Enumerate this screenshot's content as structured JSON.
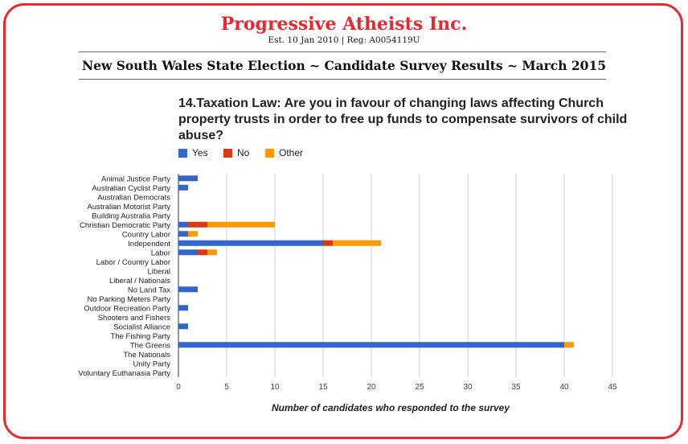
{
  "header": {
    "org_name": "Progressive Atheists Inc.",
    "org_details": "Est. 10 Jan 2010 | Reg: A0054119U",
    "survey_title": "New South Wales State Election ~ Candidate Survey Results ~ March 2015"
  },
  "colors": {
    "frame": "#e8272f",
    "yes": "#3366cc",
    "no": "#dc3912",
    "other": "#ff9900",
    "grid": "#cccccc"
  },
  "chart_data": {
    "type": "bar",
    "orientation": "horizontal",
    "stacked": true,
    "title": "14.Taxation Law: Are you in favour of changing laws affecting Church property trusts in order to free up funds to compensate survivors of child abuse?",
    "xlabel": "Number of candidates who responded to the survey",
    "ylabel": "",
    "xlim": [
      0,
      45
    ],
    "xticks": [
      0,
      5,
      10,
      15,
      20,
      25,
      30,
      35,
      40,
      45
    ],
    "grid": true,
    "legend_position": "top-left",
    "categories": [
      "Animal Justice Party",
      "Australian Cyclist Party",
      "Australian Democrats",
      "Australian Motorist Party",
      "Building Australia Party",
      "Christian Democratic Party",
      "Country Labor",
      "Independent",
      "Labor",
      "Labor / Country Labor",
      "Liberal",
      "Liberal / Nationals",
      "No Land Tax",
      "No Parking Meters Party",
      "Outdoor Recreation Party",
      "Shooters and Fishers",
      "Socialist Alliance",
      "The Fishing Party",
      "The Greens",
      "The Nationals",
      "Unity Party",
      "Voluntary Euthanasia Party"
    ],
    "series": [
      {
        "name": "Yes",
        "color": "#3366cc",
        "values": [
          2,
          1,
          0,
          0,
          0,
          1,
          1,
          15,
          2,
          0,
          0,
          0,
          2,
          0,
          1,
          0,
          1,
          0,
          40,
          0,
          0,
          0
        ]
      },
      {
        "name": "No",
        "color": "#dc3912",
        "values": [
          0,
          0,
          0,
          0,
          0,
          2,
          0,
          1,
          1,
          0,
          0,
          0,
          0,
          0,
          0,
          0,
          0,
          0,
          0,
          0,
          0,
          0
        ]
      },
      {
        "name": "Other",
        "color": "#ff9900",
        "values": [
          0,
          0,
          0,
          0,
          0,
          7,
          1,
          5,
          1,
          0,
          0,
          0,
          0,
          0,
          0,
          0,
          0,
          0,
          1,
          0,
          0,
          0
        ]
      }
    ]
  }
}
